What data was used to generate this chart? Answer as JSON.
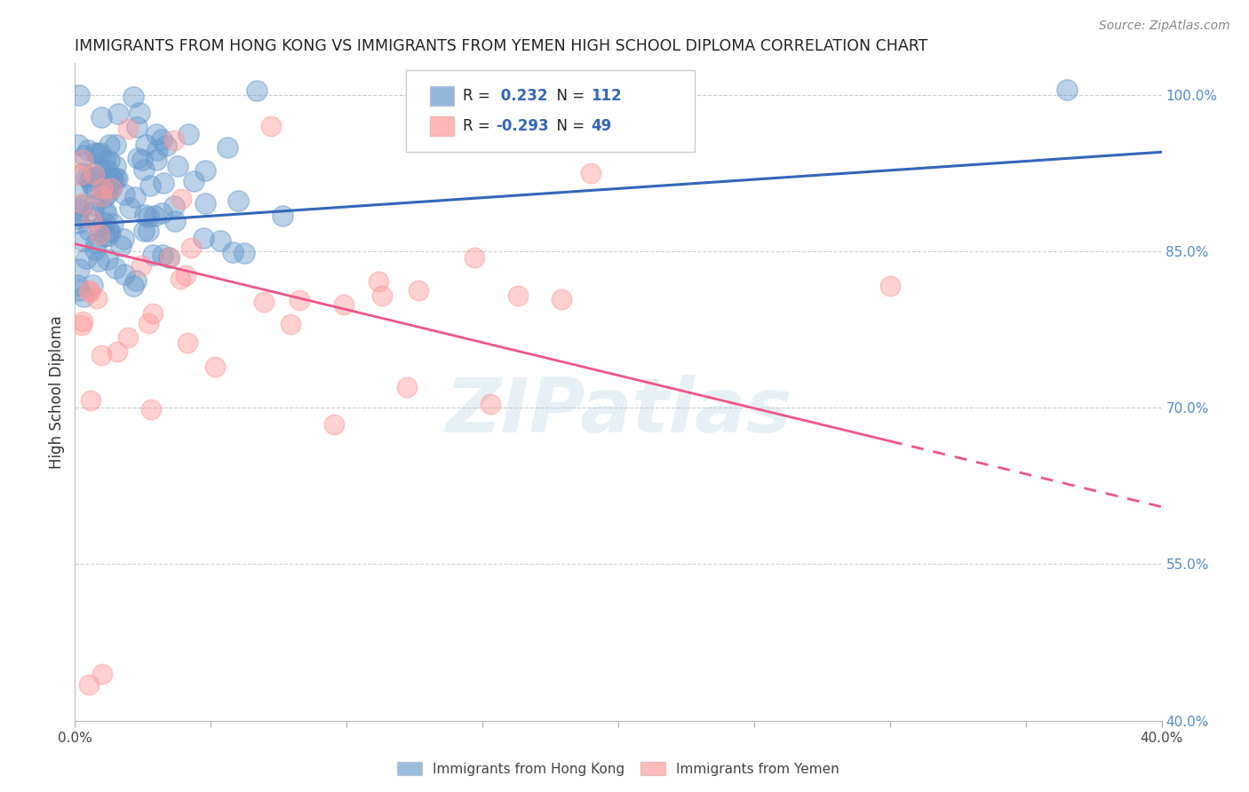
{
  "title": "IMMIGRANTS FROM HONG KONG VS IMMIGRANTS FROM YEMEN HIGH SCHOOL DIPLOMA CORRELATION CHART",
  "source": "Source: ZipAtlas.com",
  "ylabel": "High School Diploma",
  "right_yticks": [
    "100.0%",
    "85.0%",
    "70.0%",
    "55.0%",
    "40.0%"
  ],
  "right_ytick_vals": [
    1.0,
    0.85,
    0.7,
    0.55,
    0.4
  ],
  "hk_R": 0.232,
  "hk_N": 112,
  "yemen_R": -0.293,
  "yemen_N": 49,
  "hk_color": "#6699CC",
  "yemen_color": "#FF9999",
  "hk_line_color": "#3366BB",
  "yemen_line_color": "#EE5588",
  "watermark": "ZIPatlas",
  "xlim": [
    0.0,
    0.4
  ],
  "ylim": [
    0.4,
    1.03
  ],
  "background_color": "#FFFFFF",
  "grid_color": "#CCCCCC",
  "hk_legend_label": "Immigrants from Hong Kong",
  "yemen_legend_label": "Immigrants from Yemen"
}
